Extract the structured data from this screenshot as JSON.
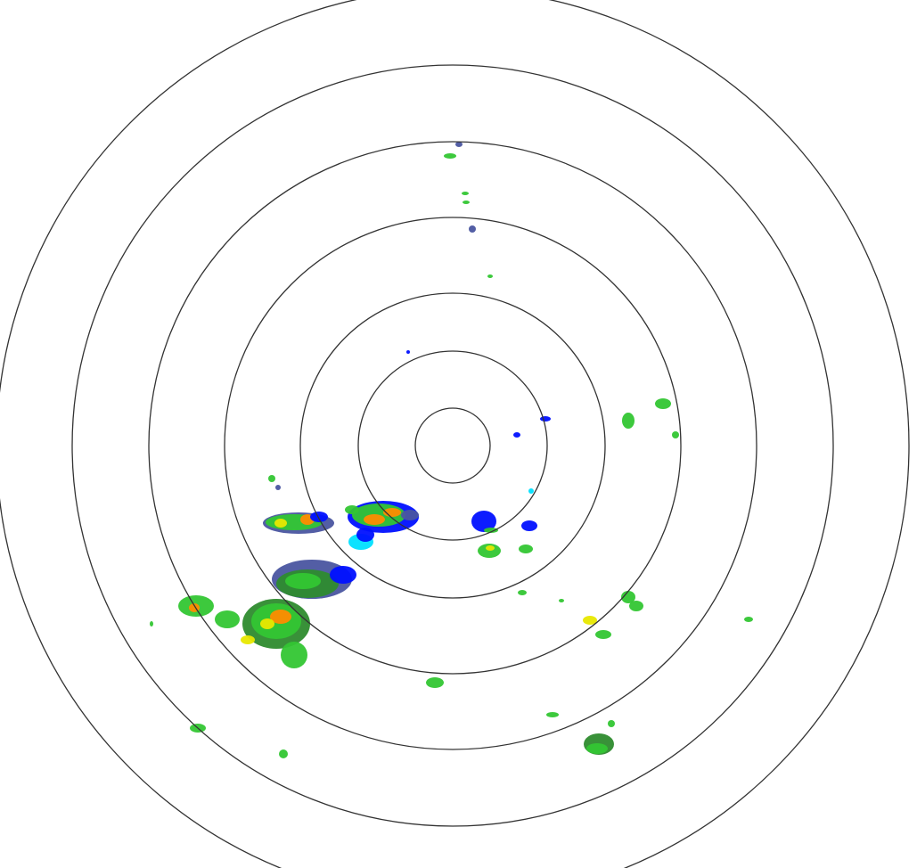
{
  "radar": {
    "ring_count": 7,
    "ring_color": "#333333",
    "background": "#ffffff",
    "reflectivity_palette": {
      "light_blue": "#00e0ff",
      "blue": "#0010ff",
      "slate": "#4a55a0",
      "dark_green": "#2e8b2e",
      "green": "#33c633",
      "yellow": "#e8e800",
      "orange": "#ff8c00",
      "red": "#ff2a00"
    }
  }
}
